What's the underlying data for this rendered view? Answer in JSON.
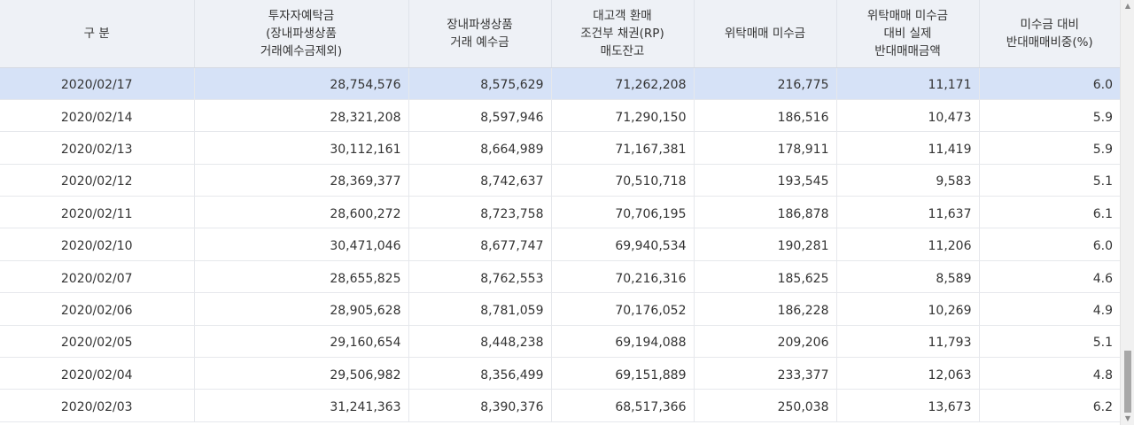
{
  "table": {
    "headers": [
      [
        "구 분"
      ],
      [
        "투자자예탁금",
        "(장내파생상품",
        "거래예수금제외)"
      ],
      [
        "장내파생상품",
        "거래 예수금"
      ],
      [
        "대고객 환매",
        "조건부 채권(RP)",
        "매도잔고"
      ],
      [
        "위탁매매 미수금"
      ],
      [
        "위탁매매 미수금",
        "대비 실제",
        "반대매매금액"
      ],
      [
        "미수금 대비",
        "반대매매비중(%)"
      ]
    ],
    "rows": [
      [
        "2020/02/17",
        "28,754,576",
        "8,575,629",
        "71,262,208",
        "216,775",
        "11,171",
        "6.0"
      ],
      [
        "2020/02/14",
        "28,321,208",
        "8,597,946",
        "71,290,150",
        "186,516",
        "10,473",
        "5.9"
      ],
      [
        "2020/02/13",
        "30,112,161",
        "8,664,989",
        "71,167,381",
        "178,911",
        "11,419",
        "5.9"
      ],
      [
        "2020/02/12",
        "28,369,377",
        "8,742,637",
        "70,510,718",
        "193,545",
        "9,583",
        "5.1"
      ],
      [
        "2020/02/11",
        "28,600,272",
        "8,723,758",
        "70,706,195",
        "186,878",
        "11,637",
        "6.1"
      ],
      [
        "2020/02/10",
        "30,471,046",
        "8,677,747",
        "69,940,534",
        "190,281",
        "11,206",
        "6.0"
      ],
      [
        "2020/02/07",
        "28,655,825",
        "8,762,553",
        "70,216,316",
        "185,625",
        "8,589",
        "4.6"
      ],
      [
        "2020/02/06",
        "28,905,628",
        "8,781,059",
        "70,176,052",
        "186,228",
        "10,269",
        "4.9"
      ],
      [
        "2020/02/05",
        "29,160,654",
        "8,448,238",
        "69,194,088",
        "209,206",
        "11,793",
        "5.1"
      ],
      [
        "2020/02/04",
        "29,506,982",
        "8,356,499",
        "69,151,889",
        "233,377",
        "12,063",
        "4.8"
      ],
      [
        "2020/02/03",
        "31,241,363",
        "8,390,376",
        "68,517,366",
        "250,038",
        "13,673",
        "6.2"
      ]
    ],
    "selected_row": 0
  },
  "scrollbar": {
    "up_icon": "▲",
    "down_icon": "▼"
  }
}
